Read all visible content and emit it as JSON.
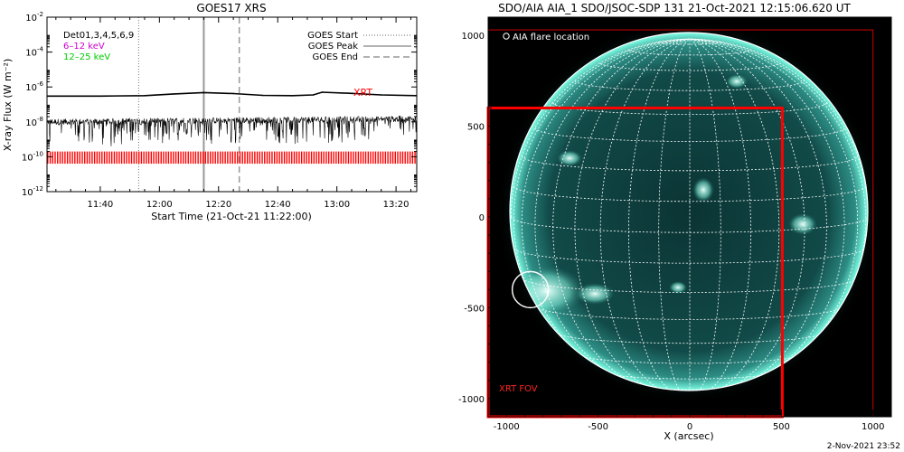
{
  "footer_timestamp": "2-Nov-2021 23:52",
  "chart_data": [
    {
      "type": "line",
      "title": "GOES17 XRS",
      "xlabel": "Start Time (21-Oct-21 11:22:00)",
      "ylabel": "X-ray Flux (W m⁻²)",
      "yscale": "log",
      "ylim": [
        1e-12,
        0.01
      ],
      "xlim": [
        "11:22",
        "13:27"
      ],
      "x_ticks": [
        "11:40",
        "12:00",
        "12:20",
        "12:40",
        "13:00",
        "13:20"
      ],
      "y_ticks": [
        {
          "base": "10",
          "exp": "-12"
        },
        {
          "base": "10",
          "exp": "-10"
        },
        {
          "base": "10",
          "exp": "-8"
        },
        {
          "base": "10",
          "exp": "-6"
        },
        {
          "base": "10",
          "exp": "-4"
        },
        {
          "base": "10",
          "exp": "-2"
        }
      ],
      "channels_legend": [
        {
          "text": "Det01,3,4,5,6,9",
          "color": "#000000"
        },
        {
          "text": "6–12 keV",
          "color": "#cc00cc"
        },
        {
          "text": "12–25 keV",
          "color": "#00cc00"
        }
      ],
      "goes_legend": [
        {
          "text": "GOES Start",
          "style": "dotted"
        },
        {
          "text": "GOES Peak",
          "style": "solid"
        },
        {
          "text": "GOES End",
          "style": "dashed"
        }
      ],
      "event_lines": {
        "start": "11:53",
        "peak": "12:15",
        "end": "12:27"
      },
      "series": [
        {
          "name": "XRT",
          "color": "#000000",
          "label_color": "#ff0000",
          "x": [
            "11:22",
            "11:40",
            "11:55",
            "12:05",
            "12:15",
            "12:25",
            "12:35",
            "12:45",
            "12:52",
            "12:55",
            "13:05",
            "13:15",
            "13:27"
          ],
          "y": [
            3e-07,
            3e-07,
            3.2e-07,
            4e-07,
            4.8e-07,
            4.2e-07,
            3.3e-07,
            3.2e-07,
            3.5e-07,
            5e-07,
            4.3e-07,
            3.5e-07,
            3.2e-07
          ]
        },
        {
          "name": "",
          "color": "#000000",
          "noisy": true,
          "x": [
            "11:22",
            "13:27"
          ],
          "y": [
            1e-08,
            1.5e-08
          ]
        }
      ]
    },
    {
      "type": "image",
      "title": "SDO/AIA AIA_1 SDO/JSOC-SDP 131 21-Oct-2021 12:15:06.620 UT",
      "xlabel": "X (arcsec)",
      "ylabel": "",
      "xlim": [
        -1100,
        1100
      ],
      "ylim": [
        -1100,
        1100
      ],
      "x_ticks": [
        "-1000",
        "-500",
        "0",
        "500",
        "1000"
      ],
      "y_ticks": [
        "-1000",
        "-500",
        "0",
        "500",
        "1000"
      ],
      "legend": "AIA flare location",
      "fov_label": "XRT FOV",
      "solar_radius_arcsec": 975,
      "flare_location_arcsec": [
        -870,
        -400
      ],
      "xrt_fov_arcsec": {
        "x0": -1100,
        "x1": 505,
        "y0": -1100,
        "y1": 600
      },
      "outer_fov_arcsec": {
        "x0": -1100,
        "x1": 1000,
        "y0": -1100,
        "y1": 1030
      },
      "disk_color": "#0a3b3b",
      "limb_color": "#7fffe6",
      "fov_color": "#ff0000"
    }
  ]
}
